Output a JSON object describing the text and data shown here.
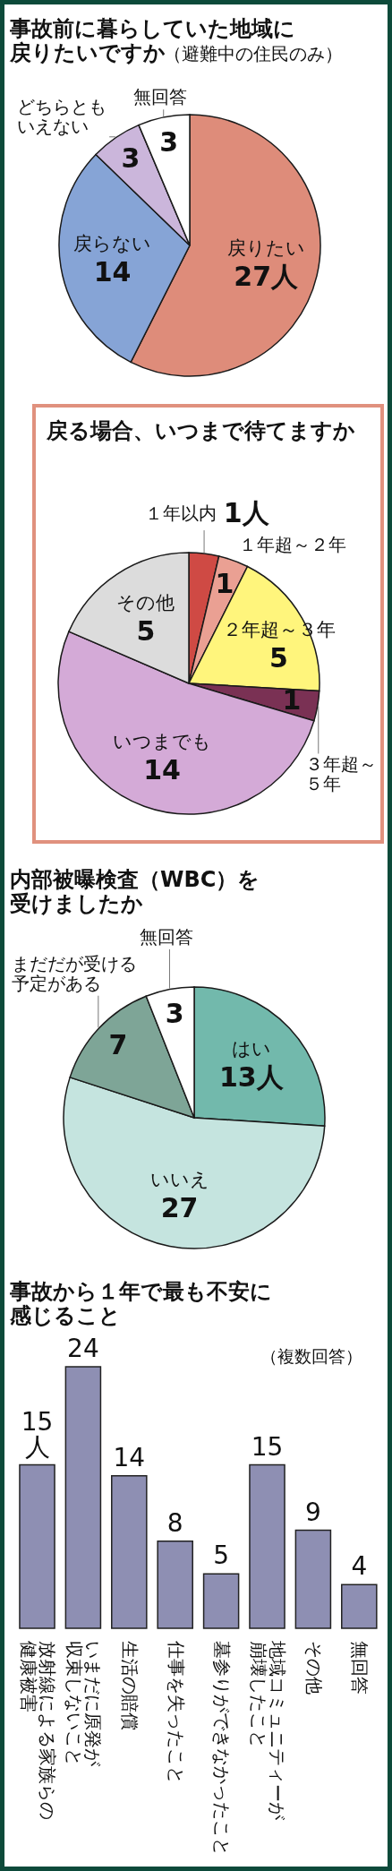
{
  "chart_data": [
    {
      "type": "pie",
      "title": "事故前に暮らしていた地域に戻りたいですか（避難中の住民のみ）",
      "categories": [
        "戻りたい",
        "戻らない",
        "どちらともいえない",
        "無回答"
      ],
      "values": [
        27,
        14,
        3,
        3
      ],
      "value_labels": [
        "27人",
        "14",
        "3",
        "3"
      ],
      "colors": [
        "#de8c7a",
        "#86a4d6",
        "#cbb6db",
        "#ffffff"
      ]
    },
    {
      "type": "pie",
      "title": "戻る場合、いつまで待てますか",
      "categories": [
        "１年以内",
        "１年超～２年",
        "２年超～３年",
        "３年超～５年",
        "いつまでも",
        "その他"
      ],
      "values": [
        1,
        1,
        5,
        1,
        14,
        5
      ],
      "value_labels": [
        "1人",
        "1",
        "5",
        "1",
        "14",
        "5"
      ],
      "colors": [
        "#cf4a44",
        "#eaa093",
        "#fff57c",
        "#7a3154",
        "#d4aad7",
        "#dcdcdc"
      ]
    },
    {
      "type": "pie",
      "title": "内部被曝検査（WBC）を受けましたか",
      "categories": [
        "はい",
        "いいえ",
        "まだだが受ける予定がある",
        "無回答"
      ],
      "values": [
        13,
        27,
        7,
        3
      ],
      "value_labels": [
        "13人",
        "27",
        "7",
        "3"
      ],
      "colors": [
        "#72b9ac",
        "#c5e4df",
        "#7ea597",
        "#ffffff"
      ]
    },
    {
      "type": "bar",
      "title": "事故から１年で最も不安に感じること",
      "annotations": [
        "（複数回答）"
      ],
      "categories": [
        "放射線による家族らの健康被害",
        "いまだに原発が収束しないこと",
        "生活の賠償",
        "仕事を失ったこと",
        "墓参りができなかったこと",
        "地域コミュニティーが崩壊したこと",
        "その他",
        "無回答"
      ],
      "values": [
        15,
        24,
        14,
        8,
        5,
        15,
        9,
        4
      ],
      "value_labels": [
        "15人",
        "24",
        "14",
        "8",
        "5",
        "15",
        "9",
        "4"
      ],
      "color": "#8e8fb3"
    }
  ]
}
